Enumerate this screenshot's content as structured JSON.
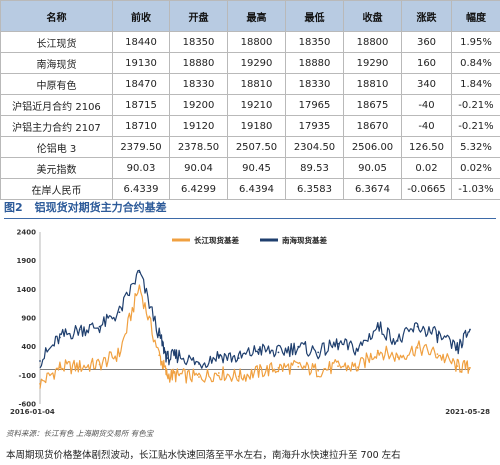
{
  "table": {
    "headers": [
      "名称",
      "前收",
      "开盘",
      "最高",
      "最低",
      "收盘",
      "涨跌",
      "幅度"
    ],
    "rows": [
      [
        "长江现货",
        "18440",
        "18350",
        "18800",
        "18350",
        "18800",
        "360",
        "1.95%"
      ],
      [
        "南海现货",
        "19130",
        "18880",
        "19290",
        "18880",
        "19290",
        "160",
        "0.84%"
      ],
      [
        "中原有色",
        "18470",
        "18330",
        "18810",
        "18330",
        "18810",
        "340",
        "1.84%"
      ],
      [
        "沪铝近月合约 2106",
        "18715",
        "19200",
        "19210",
        "17965",
        "18675",
        "-40",
        "-0.21%"
      ],
      [
        "沪铝主力合约 2107",
        "18710",
        "19120",
        "19180",
        "17935",
        "18670",
        "-40",
        "-0.21%"
      ],
      [
        "伦铝电 3",
        "2379.50",
        "2378.50",
        "2507.50",
        "2304.50",
        "2506.00",
        "126.50",
        "5.32%"
      ],
      [
        "美元指数",
        "90.03",
        "90.04",
        "90.45",
        "89.53",
        "90.05",
        "0.02",
        "0.02%"
      ],
      [
        "在岸人民币",
        "6.4339",
        "6.4299",
        "6.4394",
        "6.3583",
        "6.3674",
        "-0.0665",
        "-1.03%"
      ]
    ]
  },
  "figure": {
    "number": "图2",
    "title": "铝现货对期货主力合约基差"
  },
  "chart_data": {
    "type": "line",
    "title": "",
    "xlabel": "",
    "ylabel": "",
    "x_start_label": "2016-01-04",
    "x_end_label": "2021-05-28",
    "ylim": [
      -600,
      2400
    ],
    "yticks": [
      2400,
      1900,
      1400,
      900,
      400,
      -100,
      -600
    ],
    "legend_position": "top-center",
    "x": [
      2016.0,
      2016.25,
      2016.5,
      2016.75,
      2017.0,
      2017.25,
      2017.5,
      2017.6,
      2017.75,
      2018.0,
      2018.25,
      2018.5,
      2018.75,
      2019.0,
      2019.25,
      2019.5,
      2019.75,
      2020.0,
      2020.25,
      2020.5,
      2020.75,
      2021.0,
      2021.25,
      2021.41
    ],
    "series": [
      {
        "name": "长江现货基差",
        "color": "#f0a040",
        "values": [
          -250,
          40,
          50,
          90,
          280,
          1450,
          250,
          -100,
          -100,
          -130,
          -60,
          -120,
          -40,
          30,
          50,
          -20,
          60,
          40,
          330,
          220,
          380,
          270,
          60,
          30
        ]
      },
      {
        "name": "南海现货基差",
        "color": "#1f3f6e",
        "values": [
          150,
          560,
          700,
          750,
          1000,
          1700,
          600,
          200,
          250,
          100,
          250,
          200,
          350,
          300,
          400,
          300,
          450,
          350,
          750,
          500,
          750,
          600,
          350,
          700
        ]
      }
    ]
  },
  "source": "资料来源：长江有色  上海期货交易所  有色宝",
  "caption": "本周期现货价格整体剧烈波动，长江贴水快速回落至平水左右，南海升水快速拉升至 700 左右"
}
